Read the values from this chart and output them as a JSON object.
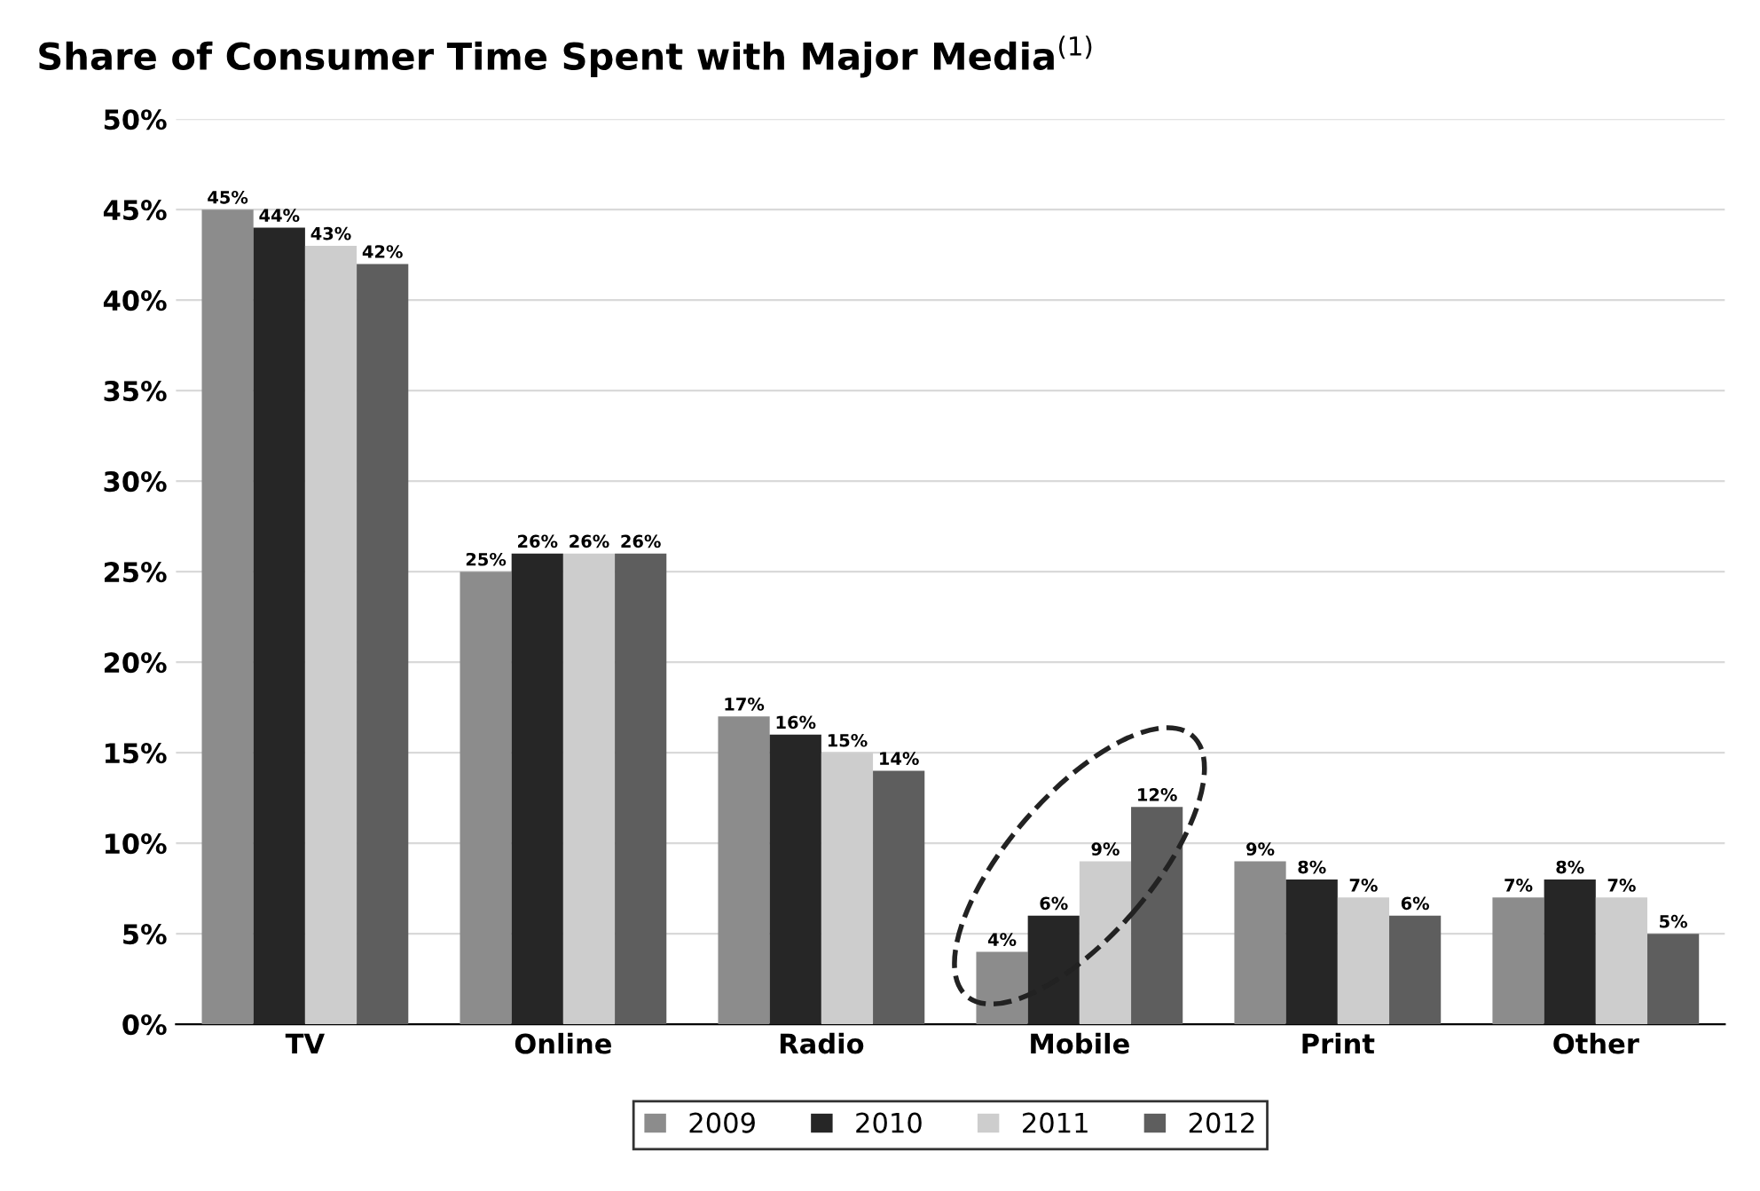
{
  "chart_data": {
    "type": "bar",
    "title": "Share of Consumer Time Spent with Major Media$^{(1)}$",
    "categories": [
      "TV",
      "Online",
      "Radio",
      "Mobile",
      "Print",
      "Other"
    ],
    "series": [
      {
        "name": "2009",
        "color": "#8c8c8c",
        "values": [
          45,
          25,
          17,
          4,
          9,
          7
        ],
        "value_labels": [
          "45%",
          "25%",
          "17%",
          "4%",
          "9%",
          "7%"
        ]
      },
      {
        "name": "2010",
        "color": "#262626",
        "values": [
          44,
          26,
          16,
          6,
          8,
          8
        ],
        "value_labels": [
          "44%",
          "26%",
          "16%",
          "6%",
          "8%",
          "8%"
        ]
      },
      {
        "name": "2011",
        "color": "#cdcdcd",
        "values": [
          43,
          26,
          15,
          9,
          7,
          7
        ],
        "value_labels": [
          "43%",
          "26%",
          "15%",
          "9%",
          "7%",
          "7%"
        ]
      },
      {
        "name": "2012",
        "color": "#5e5e5e",
        "values": [
          42,
          26,
          14,
          12,
          6,
          5
        ],
        "value_labels": [
          "42%",
          "26%",
          "14%",
          "12%",
          "6%",
          "5%"
        ]
      }
    ],
    "ylim": [
      0,
      50
    ],
    "yticks": [
      {
        "value": 0,
        "label": "0%"
      },
      {
        "value": 5,
        "label": "5%"
      },
      {
        "value": 10,
        "label": "10%"
      },
      {
        "value": 15,
        "label": "15%"
      },
      {
        "value": 20,
        "label": "20%"
      },
      {
        "value": 25,
        "label": "25%"
      },
      {
        "value": 30,
        "label": "30%"
      },
      {
        "value": 35,
        "label": "35%"
      },
      {
        "value": 40,
        "label": "40%"
      },
      {
        "value": 45,
        "label": "45%"
      },
      {
        "value": 50,
        "label": "50%"
      }
    ],
    "grid": "y",
    "legend": "bottom"
  }
}
